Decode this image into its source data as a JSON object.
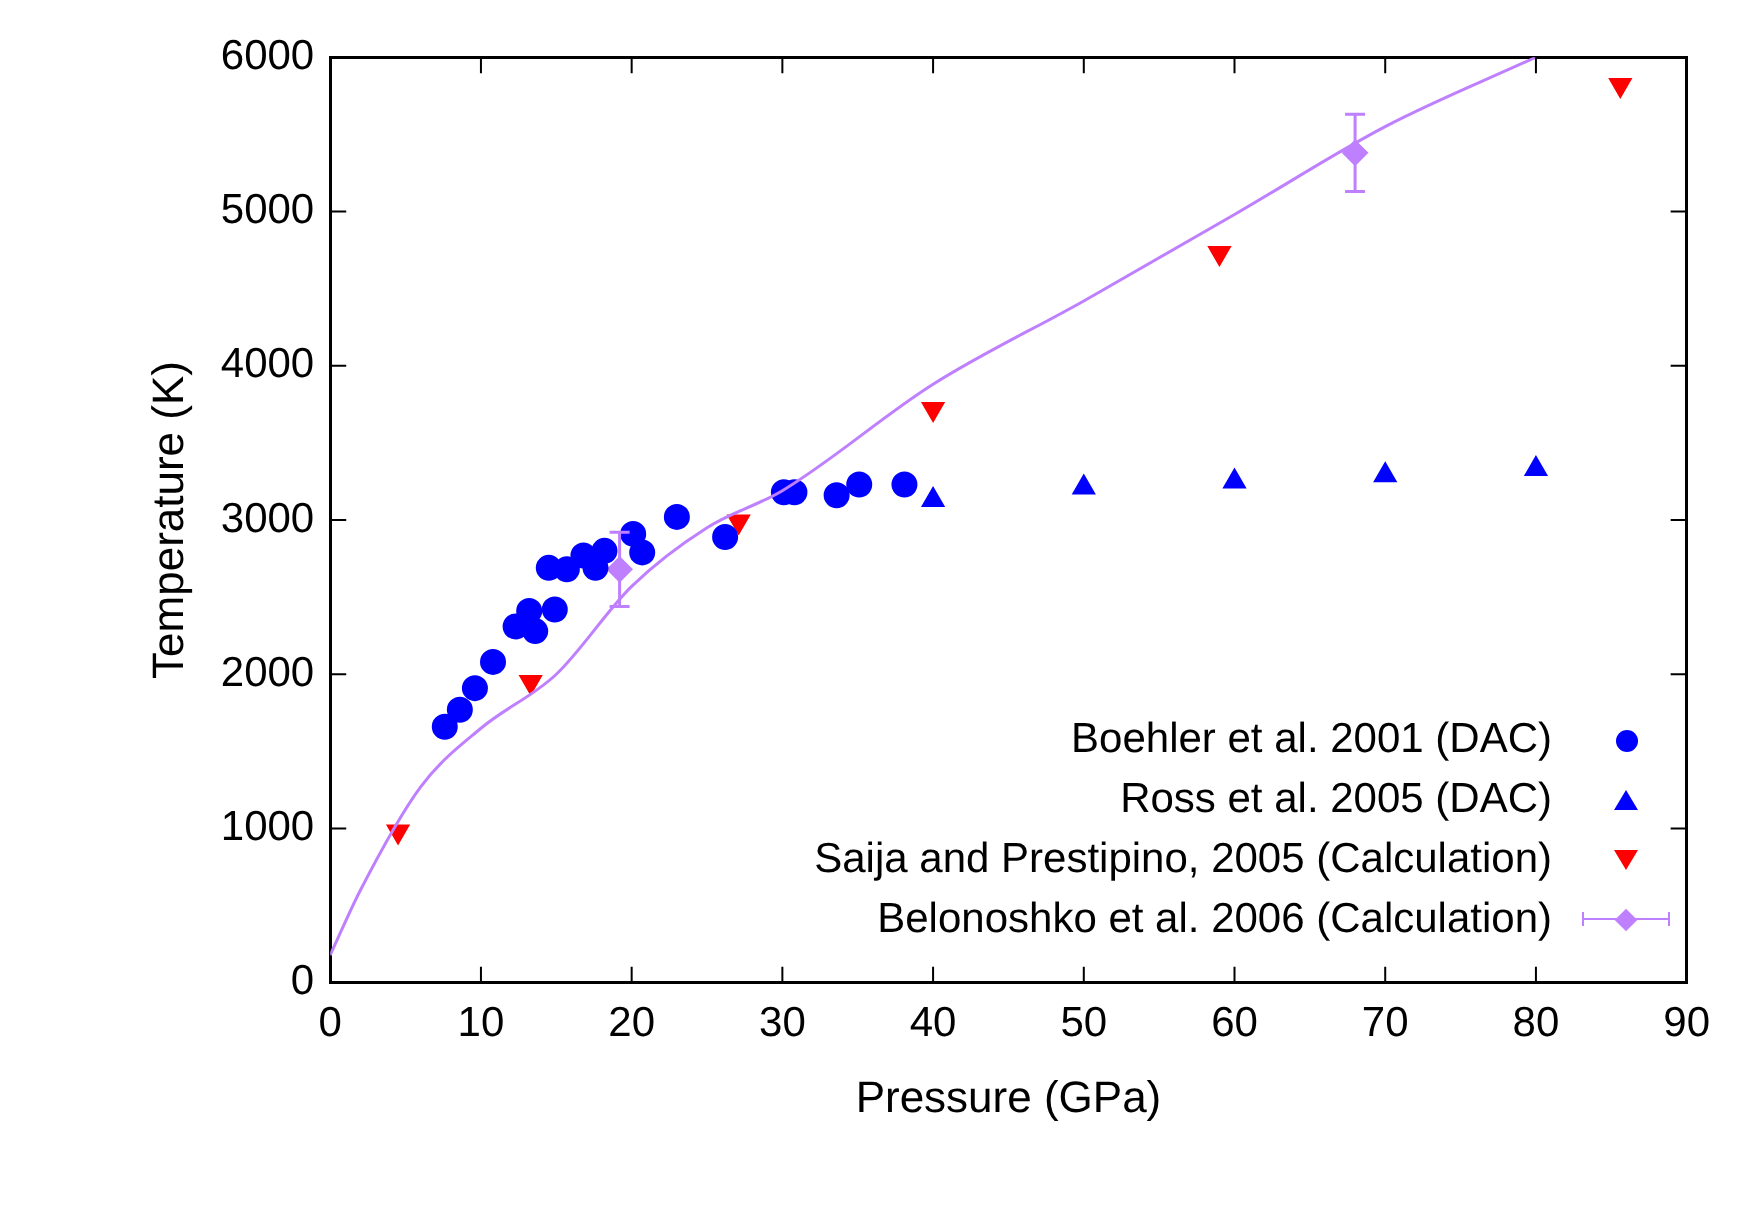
{
  "chart_data": {
    "type": "scatter",
    "xlabel": "Pressure (GPa)",
    "ylabel": "Temperature (K)",
    "xlim": [
      0,
      90
    ],
    "xticks": [
      0,
      10,
      20,
      30,
      40,
      50,
      60,
      70,
      80,
      90
    ],
    "ylim": [
      0,
      6000
    ],
    "yticks": [
      0,
      1000,
      2000,
      3000,
      4000,
      5000,
      6000
    ],
    "grid": false,
    "legend": "bottom right",
    "series": [
      {
        "name": "Boehler et al. 2001 (DAC)",
        "color": "#0000ff",
        "marker": "circle",
        "x": [
          7.6,
          8.6,
          9.6,
          10.8,
          12.3,
          13.2,
          13.6,
          14.9,
          14.5,
          15.7,
          16.8,
          17.6,
          18.2,
          20.1,
          20.7,
          23.0,
          26.2,
          30.1,
          30.8,
          33.6,
          35.1,
          38.1
        ],
        "values": [
          1660,
          1770,
          1910,
          2080,
          2310,
          2410,
          2280,
          2420,
          2690,
          2680,
          2770,
          2690,
          2800,
          2910,
          2790,
          3020,
          2890,
          3180,
          3180,
          3160,
          3230,
          3230
        ]
      },
      {
        "name": "Ross et al. 2005 (DAC)",
        "color": "#0000ff",
        "marker": "triangle",
        "x": [
          40,
          50,
          60,
          70,
          80
        ],
        "values": [
          3130,
          3210,
          3250,
          3290,
          3330
        ]
      },
      {
        "name": "Saija and Prestipino, 2005 (Calculation)",
        "color": "#ff0000",
        "marker": "triangle",
        "x": [
          4.5,
          13.3,
          27.1,
          40,
          59,
          85.6
        ],
        "values": [
          980,
          1950,
          2990,
          3720,
          4730,
          5820
        ]
      },
      {
        "name": "Belonoshko et al. 2006 (Calculation)",
        "color": "#bf80ff",
        "marker": "diamond",
        "x": [
          19.2,
          68
        ],
        "values": [
          2680,
          5380
        ],
        "errors": [
          240,
          250
        ]
      },
      {
        "type": "line",
        "color": "#bf80ff",
        "marker": "none",
        "x": [
          0,
          2,
          6,
          10,
          15,
          20,
          25,
          30,
          40,
          50,
          60,
          70,
          80
        ],
        "values": [
          180,
          600,
          1270,
          1650,
          2000,
          2570,
          2950,
          3190,
          3880,
          4420,
          4980,
          5550,
          6000
        ]
      }
    ]
  }
}
